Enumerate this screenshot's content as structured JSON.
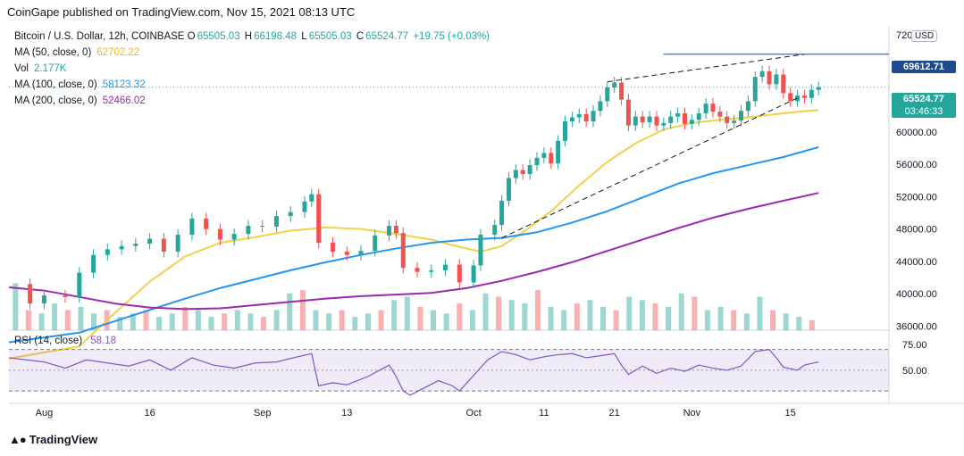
{
  "publisher": "CoinGape published on TradingView.com, Nov 15, 2021 08:13 UTC",
  "symbol_line": {
    "title": "Bitcoin / U.S. Dollar, 12h, COINBASE",
    "open_key": "O",
    "open": "65505.03",
    "high_key": "H",
    "high": "66198.48",
    "low_key": "L",
    "low": "65505.03",
    "close_key": "C",
    "close": "65524.77",
    "change": "+19.75 (+0.03%)"
  },
  "indicators": {
    "ma50": {
      "label": "MA (50, close, 0)",
      "value": "62702.22",
      "color": "#f2d04a"
    },
    "vol": {
      "label": "Vol",
      "value": "2.177K",
      "color": "#26a69a"
    },
    "ma100": {
      "label": "MA (100, close, 0)",
      "value": "58123.32",
      "color": "#2196f3"
    },
    "ma200": {
      "label": "MA (200, close, 0)",
      "value": "52466.02",
      "color": "#9c27b0"
    }
  },
  "price_tags": {
    "resistance": {
      "value": "69612.71",
      "color": "#1e4b8f"
    },
    "last": {
      "value": "65524.77",
      "countdown": "03:46:33",
      "color": "#26a69a"
    }
  },
  "currency": "USD",
  "rsi": {
    "label": "RSI (14, close)",
    "value": "58.18",
    "color": "#7e57c2"
  },
  "branding": "TradingView",
  "chart_data": {
    "type": "line",
    "title": "Bitcoin / U.S. Dollar, 12h, COINBASE",
    "y_ticks": [
      72000,
      68000,
      64000,
      60000,
      56000,
      52000,
      48000,
      44000,
      40000,
      36000
    ],
    "y_tick_labels": [
      "72000.00",
      "68000.00",
      "64000.00",
      "60000.00",
      "56000.00",
      "52000.00",
      "48000.00",
      "44000.00",
      "40000.00",
      "36000.00"
    ],
    "ylim": [
      35500,
      73000
    ],
    "rsi_ticks": [
      75,
      50
    ],
    "rsi_tick_labels": [
      "75.00",
      "50.00"
    ],
    "rsi_band": [
      70,
      30
    ],
    "x_ticks": [
      {
        "label": "Aug",
        "day": 0
      },
      {
        "label": "16",
        "day": 15
      },
      {
        "label": "Sep",
        "day": 31
      },
      {
        "label": "13",
        "day": 43
      },
      {
        "label": "Oct",
        "day": 61
      },
      {
        "label": "11",
        "day": 71
      },
      {
        "label": "21",
        "day": 81
      },
      {
        "label": "Nov",
        "day": 92
      },
      {
        "label": "15",
        "day": 106
      }
    ],
    "xlim": [
      -5,
      120
    ],
    "price_path": [
      [
        -5,
        41200
      ],
      [
        -2,
        38800
      ],
      [
        0,
        39800
      ],
      [
        3,
        39600
      ],
      [
        5,
        42600
      ],
      [
        7,
        44800
      ],
      [
        9,
        45500
      ],
      [
        11,
        45900
      ],
      [
        13,
        46200
      ],
      [
        15,
        46800
      ],
      [
        17,
        45200
      ],
      [
        19,
        47300
      ],
      [
        21,
        49300
      ],
      [
        23,
        48000
      ],
      [
        25,
        46700
      ],
      [
        27,
        47400
      ],
      [
        29,
        48400
      ],
      [
        31,
        48300
      ],
      [
        33,
        49600
      ],
      [
        35,
        50100
      ],
      [
        37,
        51400
      ],
      [
        38,
        52300
      ],
      [
        39,
        46300
      ],
      [
        41,
        45200
      ],
      [
        43,
        44800
      ],
      [
        45,
        45300
      ],
      [
        47,
        47200
      ],
      [
        49,
        48400
      ],
      [
        50,
        47500
      ],
      [
        51,
        43200
      ],
      [
        53,
        42700
      ],
      [
        55,
        42900
      ],
      [
        57,
        43600
      ],
      [
        59,
        41400
      ],
      [
        61,
        43500
      ],
      [
        62,
        47300
      ],
      [
        64,
        48500
      ],
      [
        65,
        51500
      ],
      [
        66,
        54300
      ],
      [
        67,
        55300
      ],
      [
        68,
        54800
      ],
      [
        69,
        55900
      ],
      [
        70,
        56800
      ],
      [
        71,
        57400
      ],
      [
        72,
        56100
      ],
      [
        73,
        58900
      ],
      [
        74,
        61300
      ],
      [
        75,
        61800
      ],
      [
        76,
        62200
      ],
      [
        77,
        61300
      ],
      [
        78,
        62600
      ],
      [
        79,
        63800
      ],
      [
        80,
        65500
      ],
      [
        81,
        66100
      ],
      [
        82,
        64000
      ],
      [
        83,
        60800
      ],
      [
        84,
        61900
      ],
      [
        85,
        61200
      ],
      [
        86,
        61900
      ],
      [
        87,
        60800
      ],
      [
        88,
        61100
      ],
      [
        89,
        61900
      ],
      [
        90,
        62300
      ],
      [
        91,
        61000
      ],
      [
        92,
        61500
      ],
      [
        93,
        62300
      ],
      [
        94,
        63500
      ],
      [
        95,
        62500
      ],
      [
        96,
        61900
      ],
      [
        97,
        61100
      ],
      [
        98,
        61400
      ],
      [
        99,
        62600
      ],
      [
        100,
        63800
      ],
      [
        101,
        66800
      ],
      [
        102,
        67500
      ],
      [
        103,
        65900
      ],
      [
        104,
        67100
      ],
      [
        105,
        64800
      ],
      [
        106,
        63800
      ],
      [
        107,
        64500
      ],
      [
        108,
        64200
      ],
      [
        109,
        65200
      ],
      [
        110,
        65524
      ]
    ],
    "series": [
      {
        "name": "MA (50, close, 0)",
        "color": "#f2d04a",
        "points": [
          [
            -5,
            32000
          ],
          [
            5,
            33500
          ],
          [
            10,
            37600
          ],
          [
            15,
            41500
          ],
          [
            20,
            44600
          ],
          [
            25,
            46300
          ],
          [
            30,
            47000
          ],
          [
            35,
            47800
          ],
          [
            40,
            48200
          ],
          [
            45,
            48000
          ],
          [
            50,
            47400
          ],
          [
            55,
            46700
          ],
          [
            59,
            45800
          ],
          [
            62,
            45200
          ],
          [
            65,
            45900
          ],
          [
            68,
            47600
          ],
          [
            72,
            50200
          ],
          [
            76,
            53400
          ],
          [
            80,
            56300
          ],
          [
            84,
            58600
          ],
          [
            88,
            60300
          ],
          [
            92,
            61100
          ],
          [
            96,
            61500
          ],
          [
            100,
            61800
          ],
          [
            104,
            62200
          ],
          [
            107,
            62500
          ],
          [
            110,
            62702
          ]
        ]
      },
      {
        "name": "MA (100, close, 0)",
        "color": "#2196f3",
        "points": [
          [
            -5,
            34000
          ],
          [
            5,
            35200
          ],
          [
            10,
            36600
          ],
          [
            15,
            38000
          ],
          [
            20,
            39400
          ],
          [
            25,
            40700
          ],
          [
            30,
            41800
          ],
          [
            35,
            42900
          ],
          [
            40,
            43900
          ],
          [
            45,
            44800
          ],
          [
            50,
            45600
          ],
          [
            55,
            46300
          ],
          [
            60,
            46700
          ],
          [
            65,
            46900
          ],
          [
            70,
            47600
          ],
          [
            75,
            48800
          ],
          [
            80,
            50200
          ],
          [
            85,
            51900
          ],
          [
            90,
            53600
          ],
          [
            95,
            54900
          ],
          [
            100,
            55900
          ],
          [
            105,
            56900
          ],
          [
            110,
            58123
          ]
        ]
      },
      {
        "name": "MA (200, close, 0)",
        "color": "#9c27b0",
        "points": [
          [
            -5,
            40800
          ],
          [
            0,
            40400
          ],
          [
            5,
            39600
          ],
          [
            10,
            38800
          ],
          [
            15,
            38300
          ],
          [
            20,
            38100
          ],
          [
            25,
            38200
          ],
          [
            30,
            38600
          ],
          [
            35,
            39000
          ],
          [
            40,
            39400
          ],
          [
            45,
            39700
          ],
          [
            50,
            39900
          ],
          [
            55,
            40100
          ],
          [
            60,
            40700
          ],
          [
            65,
            41600
          ],
          [
            70,
            42700
          ],
          [
            75,
            43900
          ],
          [
            80,
            45300
          ],
          [
            85,
            46700
          ],
          [
            90,
            48100
          ],
          [
            95,
            49400
          ],
          [
            100,
            50500
          ],
          [
            105,
            51500
          ],
          [
            110,
            52466
          ]
        ]
      }
    ],
    "resistance_level": 69612.71,
    "trendline_lower": [
      [
        65,
        46900
      ],
      [
        107,
        64200
      ]
    ],
    "trendline_upper": [
      [
        80,
        66200
      ],
      [
        108,
        69600
      ]
    ],
    "volume_relative": [
      0.7,
      0.3,
      0.25,
      0.4,
      0.3,
      0.35,
      0.25,
      0.3,
      0.2,
      0.25,
      0.3,
      0.2,
      0.25,
      0.35,
      0.3,
      0.2,
      0.25,
      0.3,
      0.25,
      0.2,
      0.3,
      0.55,
      0.6,
      0.3,
      0.25,
      0.3,
      0.2,
      0.25,
      0.3,
      0.45,
      0.5,
      0.35,
      0.3,
      0.25,
      0.4,
      0.3,
      0.55,
      0.5,
      0.45,
      0.4,
      0.6,
      0.35,
      0.3,
      0.4,
      0.45,
      0.35,
      0.3,
      0.5,
      0.45,
      0.4,
      0.35,
      0.55,
      0.5,
      0.3,
      0.35,
      0.3,
      0.25,
      0.5,
      0.3,
      0.25,
      0.2,
      0.15
    ],
    "rsi_path": [
      [
        -5,
        62
      ],
      [
        0,
        58
      ],
      [
        3,
        52
      ],
      [
        6,
        60
      ],
      [
        9,
        57
      ],
      [
        12,
        54
      ],
      [
        15,
        60
      ],
      [
        18,
        50
      ],
      [
        21,
        62
      ],
      [
        24,
        55
      ],
      [
        27,
        52
      ],
      [
        30,
        57
      ],
      [
        33,
        58
      ],
      [
        36,
        63
      ],
      [
        38,
        66
      ],
      [
        39,
        35
      ],
      [
        41,
        38
      ],
      [
        43,
        36
      ],
      [
        46,
        44
      ],
      [
        49,
        55
      ],
      [
        50,
        44
      ],
      [
        51,
        30
      ],
      [
        52,
        26
      ],
      [
        54,
        33
      ],
      [
        56,
        40
      ],
      [
        58,
        35
      ],
      [
        59,
        30
      ],
      [
        61,
        45
      ],
      [
        63,
        60
      ],
      [
        65,
        68
      ],
      [
        67,
        65
      ],
      [
        69,
        60
      ],
      [
        71,
        63
      ],
      [
        73,
        65
      ],
      [
        75,
        66
      ],
      [
        77,
        62
      ],
      [
        79,
        64
      ],
      [
        81,
        66
      ],
      [
        82,
        55
      ],
      [
        83,
        46
      ],
      [
        85,
        54
      ],
      [
        87,
        47
      ],
      [
        89,
        52
      ],
      [
        91,
        49
      ],
      [
        93,
        55
      ],
      [
        95,
        52
      ],
      [
        97,
        50
      ],
      [
        99,
        54
      ],
      [
        101,
        68
      ],
      [
        103,
        70
      ],
      [
        104,
        62
      ],
      [
        105,
        53
      ],
      [
        107,
        50
      ],
      [
        108,
        55
      ],
      [
        110,
        58
      ]
    ]
  }
}
